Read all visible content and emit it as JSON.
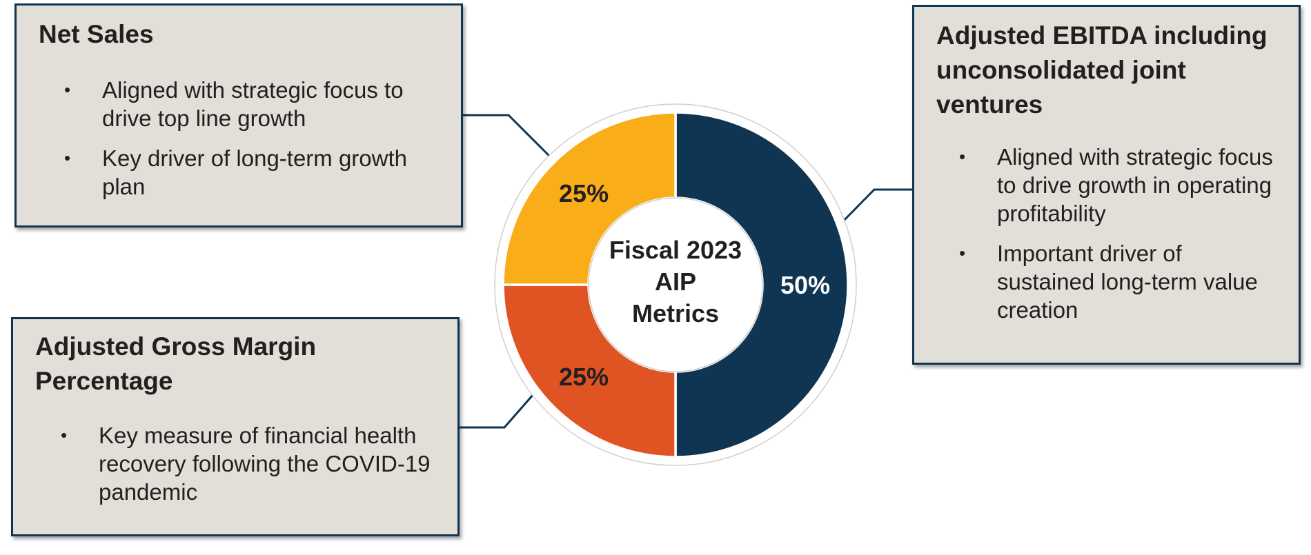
{
  "colors": {
    "navy": "#0f3553",
    "amber": "#f8ad19",
    "orange": "#e05424",
    "box_bg": "#e2dfd8",
    "text": "#231f20"
  },
  "boxes": {
    "net_sales": {
      "title": "Net Sales",
      "bullets": [
        "Aligned with strategic focus to drive top line growth",
        "Key driver of long-term growth plan"
      ]
    },
    "gross_margin": {
      "title": "Adjusted Gross Margin Percentage",
      "bullets": [
        "Key measure of financial health recovery following the COVID-19 pandemic"
      ]
    },
    "ebitda": {
      "title": "Adjusted EBITDA including unconsolidated joint ventures",
      "bullets": [
        "Aligned with strategic focus to drive growth in operating profitability",
        "Important driver of sustained long-term value creation"
      ]
    }
  },
  "bullet_glyph": "•",
  "chart_data": {
    "type": "pie",
    "donut": true,
    "center_label": "Fiscal 2023 AIP Metrics",
    "slices": [
      {
        "label": "Adjusted EBITDA including unconsolidated joint ventures",
        "value": 50,
        "display": "50%",
        "color": "#0f3553"
      },
      {
        "label": "Adjusted Gross Margin Percentage",
        "value": 25,
        "display": "25%",
        "color": "#e05424"
      },
      {
        "label": "Net Sales",
        "value": 25,
        "display": "25%",
        "color": "#f8ad19"
      }
    ]
  }
}
